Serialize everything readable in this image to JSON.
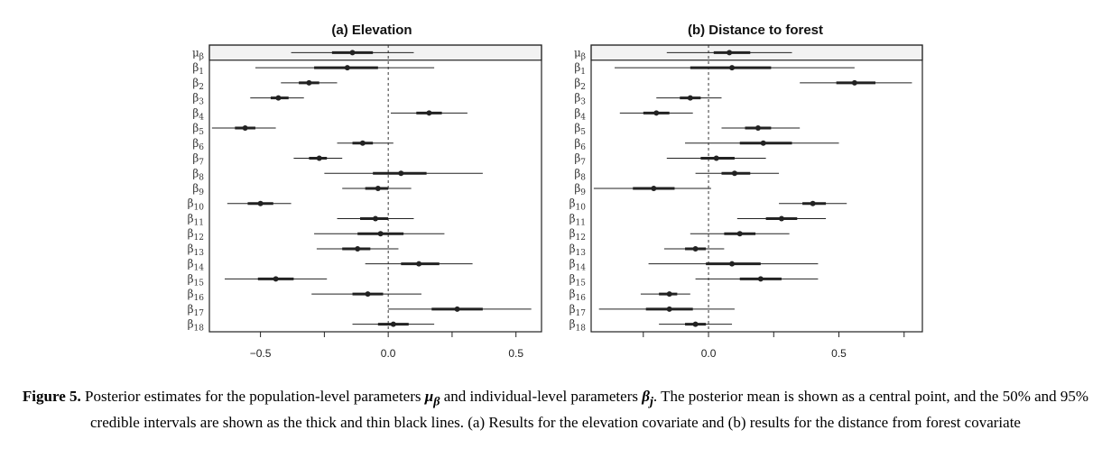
{
  "caption": {
    "label": "Figure 5.",
    "text_1": "Posterior estimates for the population-level parameters",
    "sym_mu": "μ",
    "sym_mu_sub": "β",
    "text_2": "and individual-level parameters",
    "sym_beta": "β",
    "sym_beta_sub": "j",
    "text_3": ". The posterior mean is shown as a central point, and the 50% and 95% credible intervals are shown as the thick and thin black lines. (a) Results for the elevation covariate and (b) results for the distance from forest covariate"
  },
  "chart_data": [
    {
      "type": "interval",
      "title": "(a)  Elevation",
      "xlabel": "",
      "ylabel": "",
      "xlim": [
        -0.7,
        0.6
      ],
      "xticks": [
        -0.5,
        0.0,
        0.5
      ],
      "xtick_labels": [
        "−0.5",
        "0.0",
        "0.5"
      ],
      "reference_line": 0,
      "rows": [
        {
          "label": "μβ",
          "sym": "μ",
          "sub": "β",
          "mean": -0.14,
          "q25": -0.22,
          "q75": -0.06,
          "q025": -0.38,
          "q975": 0.1,
          "highlighted": true
        },
        {
          "label": "β1",
          "sym": "β",
          "sub": "1",
          "mean": -0.16,
          "q25": -0.29,
          "q75": -0.04,
          "q025": -0.52,
          "q975": 0.18
        },
        {
          "label": "β2",
          "sym": "β",
          "sub": "2",
          "mean": -0.31,
          "q25": -0.35,
          "q75": -0.27,
          "q025": -0.42,
          "q975": -0.2
        },
        {
          "label": "β3",
          "sym": "β",
          "sub": "3",
          "mean": -0.43,
          "q25": -0.46,
          "q75": -0.39,
          "q025": -0.54,
          "q975": -0.33
        },
        {
          "label": "β4",
          "sym": "β",
          "sub": "4",
          "mean": 0.16,
          "q25": 0.11,
          "q75": 0.21,
          "q025": 0.01,
          "q975": 0.31
        },
        {
          "label": "β5",
          "sym": "β",
          "sub": "5",
          "mean": -0.56,
          "q25": -0.6,
          "q75": -0.52,
          "q025": -0.69,
          "q975": -0.44
        },
        {
          "label": "β6",
          "sym": "β",
          "sub": "6",
          "mean": -0.1,
          "q25": -0.14,
          "q75": -0.06,
          "q025": -0.2,
          "q975": 0.02
        },
        {
          "label": "β7",
          "sym": "β",
          "sub": "7",
          "mean": -0.27,
          "q25": -0.31,
          "q75": -0.24,
          "q025": -0.37,
          "q975": -0.18
        },
        {
          "label": "β8",
          "sym": "β",
          "sub": "8",
          "mean": 0.05,
          "q25": -0.06,
          "q75": 0.15,
          "q025": -0.25,
          "q975": 0.37
        },
        {
          "label": "β9",
          "sym": "β",
          "sub": "9",
          "mean": -0.04,
          "q25": -0.09,
          "q75": 0.0,
          "q025": -0.18,
          "q975": 0.09
        },
        {
          "label": "β10",
          "sym": "β",
          "sub": "10",
          "mean": -0.5,
          "q25": -0.55,
          "q75": -0.45,
          "q025": -0.63,
          "q975": -0.38
        },
        {
          "label": "β11",
          "sym": "β",
          "sub": "11",
          "mean": -0.05,
          "q25": -0.11,
          "q75": 0.0,
          "q025": -0.2,
          "q975": 0.1
        },
        {
          "label": "β12",
          "sym": "β",
          "sub": "12",
          "mean": -0.03,
          "q25": -0.12,
          "q75": 0.06,
          "q025": -0.29,
          "q975": 0.22
        },
        {
          "label": "β13",
          "sym": "β",
          "sub": "13",
          "mean": -0.12,
          "q25": -0.18,
          "q75": -0.07,
          "q025": -0.28,
          "q975": 0.04
        },
        {
          "label": "β14",
          "sym": "β",
          "sub": "14",
          "mean": 0.12,
          "q25": 0.05,
          "q75": 0.2,
          "q025": -0.09,
          "q975": 0.33
        },
        {
          "label": "β15",
          "sym": "β",
          "sub": "15",
          "mean": -0.44,
          "q25": -0.51,
          "q75": -0.37,
          "q025": -0.64,
          "q975": -0.24
        },
        {
          "label": "β16",
          "sym": "β",
          "sub": "16",
          "mean": -0.08,
          "q25": -0.14,
          "q75": -0.02,
          "q025": -0.3,
          "q975": 0.13
        },
        {
          "label": "β17",
          "sym": "β",
          "sub": "17",
          "mean": 0.27,
          "q25": 0.17,
          "q75": 0.37,
          "q025": 0.0,
          "q975": 0.56
        },
        {
          "label": "β18",
          "sym": "β",
          "sub": "18",
          "mean": 0.02,
          "q25": -0.04,
          "q75": 0.08,
          "q025": -0.14,
          "q975": 0.18
        }
      ]
    },
    {
      "type": "interval",
      "title": "(b)  Distance to forest",
      "xlabel": "",
      "ylabel": "",
      "xlim": [
        -0.45,
        0.82
      ],
      "xticks": [
        0.0,
        0.5
      ],
      "xtick_labels": [
        "0.0",
        "0.5"
      ],
      "reference_line": 0,
      "rows": [
        {
          "label": "μβ",
          "sym": "μ",
          "sub": "β",
          "mean": 0.08,
          "q25": 0.02,
          "q75": 0.16,
          "q025": -0.16,
          "q975": 0.32,
          "highlighted": true
        },
        {
          "label": "β1",
          "sym": "β",
          "sub": "1",
          "mean": 0.09,
          "q25": -0.07,
          "q75": 0.24,
          "q025": -0.36,
          "q975": 0.56
        },
        {
          "label": "β2",
          "sym": "β",
          "sub": "2",
          "mean": 0.56,
          "q25": 0.49,
          "q75": 0.64,
          "q025": 0.35,
          "q975": 0.78
        },
        {
          "label": "β3",
          "sym": "β",
          "sub": "3",
          "mean": -0.07,
          "q25": -0.11,
          "q75": -0.03,
          "q025": -0.2,
          "q975": 0.05
        },
        {
          "label": "β4",
          "sym": "β",
          "sub": "4",
          "mean": -0.2,
          "q25": -0.25,
          "q75": -0.15,
          "q025": -0.34,
          "q975": -0.06
        },
        {
          "label": "β5",
          "sym": "β",
          "sub": "5",
          "mean": 0.19,
          "q25": 0.14,
          "q75": 0.24,
          "q025": 0.05,
          "q975": 0.35
        },
        {
          "label": "β6",
          "sym": "β",
          "sub": "6",
          "mean": 0.21,
          "q25": 0.12,
          "q75": 0.32,
          "q025": -0.09,
          "q975": 0.5
        },
        {
          "label": "β7",
          "sym": "β",
          "sub": "7",
          "mean": 0.03,
          "q25": -0.03,
          "q75": 0.1,
          "q025": -0.16,
          "q975": 0.22
        },
        {
          "label": "β8",
          "sym": "β",
          "sub": "8",
          "mean": 0.1,
          "q25": 0.05,
          "q75": 0.16,
          "q025": -0.05,
          "q975": 0.27
        },
        {
          "label": "β9",
          "sym": "β",
          "sub": "9",
          "mean": -0.21,
          "q25": -0.29,
          "q75": -0.13,
          "q025": -0.44,
          "q975": 0.01
        },
        {
          "label": "β10",
          "sym": "β",
          "sub": "10",
          "mean": 0.4,
          "q25": 0.36,
          "q75": 0.45,
          "q025": 0.27,
          "q975": 0.53
        },
        {
          "label": "β11",
          "sym": "β",
          "sub": "11",
          "mean": 0.28,
          "q25": 0.22,
          "q75": 0.34,
          "q025": 0.11,
          "q975": 0.45
        },
        {
          "label": "β12",
          "sym": "β",
          "sub": "12",
          "mean": 0.12,
          "q25": 0.06,
          "q75": 0.18,
          "q025": -0.07,
          "q975": 0.31
        },
        {
          "label": "β13",
          "sym": "β",
          "sub": "13",
          "mean": -0.05,
          "q25": -0.09,
          "q75": -0.01,
          "q025": -0.17,
          "q975": 0.06
        },
        {
          "label": "β14",
          "sym": "β",
          "sub": "14",
          "mean": 0.09,
          "q25": -0.01,
          "q75": 0.2,
          "q025": -0.23,
          "q975": 0.42
        },
        {
          "label": "β15",
          "sym": "β",
          "sub": "15",
          "mean": 0.2,
          "q25": 0.12,
          "q75": 0.28,
          "q025": -0.05,
          "q975": 0.42
        },
        {
          "label": "β16",
          "sym": "β",
          "sub": "16",
          "mean": -0.15,
          "q25": -0.19,
          "q75": -0.12,
          "q025": -0.26,
          "q975": -0.07
        },
        {
          "label": "β17",
          "sym": "β",
          "sub": "17",
          "mean": -0.15,
          "q25": -0.24,
          "q75": -0.06,
          "q025": -0.42,
          "q975": 0.1
        },
        {
          "label": "β18",
          "sym": "β",
          "sub": "18",
          "mean": -0.05,
          "q25": -0.09,
          "q75": -0.01,
          "q025": -0.19,
          "q975": 0.09
        }
      ]
    }
  ]
}
